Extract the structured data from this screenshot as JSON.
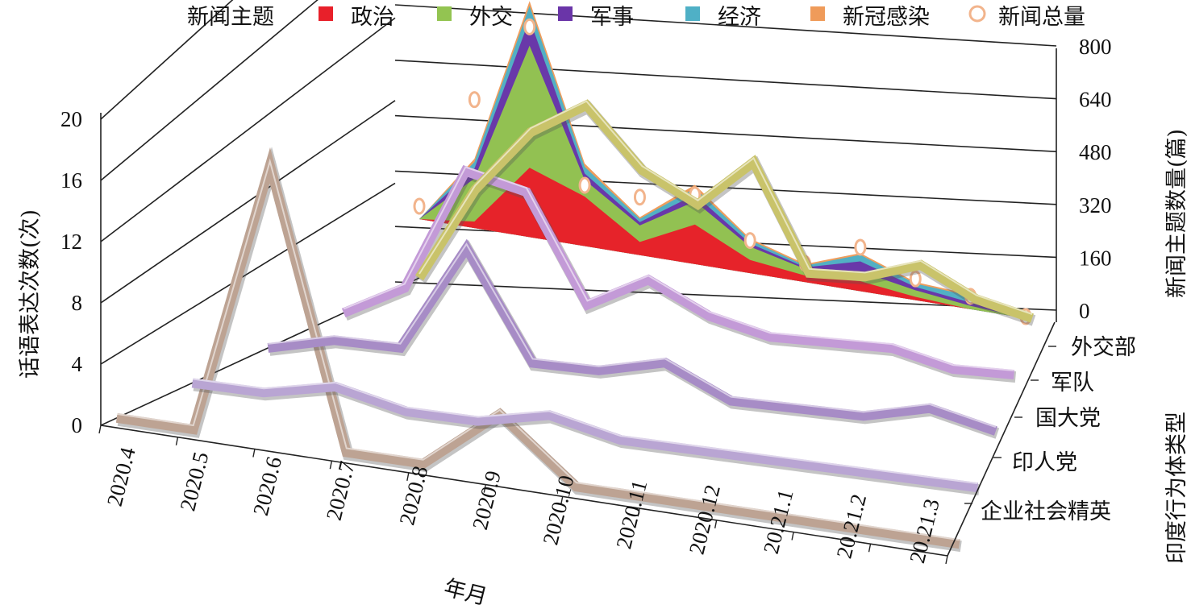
{
  "chart_data": {
    "type": "line",
    "xlabel": "年月",
    "ylabel": "话语表达次数(次)",
    "zlabel": "印度行为体类型",
    "y2label": "新闻主题数量(篇)",
    "x": [
      "2020.4",
      "2020.5",
      "2020.6",
      "2020.7",
      "2020.8",
      "2020.9",
      "2020.10",
      "2020.11",
      "2020.12",
      "20.21.1",
      "20.21.2",
      "20.21.3"
    ],
    "y_ticks": [
      "0",
      "4",
      "8",
      "12",
      "16",
      "20"
    ],
    "ylim": [
      0,
      20
    ],
    "y2_ticks": [
      "0",
      "160",
      "320",
      "480",
      "640",
      "800"
    ],
    "y2lim": [
      0,
      800
    ],
    "actor_series": [
      {
        "name": "外交部",
        "color": "#c9c36a",
        "values": [
          0,
          6,
          10,
          12,
          8,
          6,
          9,
          2,
          2,
          3,
          1,
          0
        ]
      },
      {
        "name": "军队",
        "color": "#c39ad7",
        "values": [
          0,
          2,
          10,
          9,
          2,
          4,
          2,
          1,
          1,
          1,
          0,
          0
        ]
      },
      {
        "name": "国大党",
        "color": "#a78cc6",
        "values": [
          0,
          1,
          1,
          8,
          1,
          1,
          2,
          0,
          0,
          0,
          1,
          0
        ]
      },
      {
        "name": "印人党",
        "color": "#b9a5d3",
        "values": [
          0,
          0,
          1,
          0,
          0,
          1,
          0,
          0,
          0,
          0,
          0,
          0
        ]
      },
      {
        "name": "企业社会精英",
        "color": "#bda393",
        "values": [
          0,
          0,
          18,
          0,
          0,
          4,
          0,
          0,
          0,
          0,
          0,
          0
        ]
      }
    ],
    "news_legend_title": "新闻主题",
    "news_series": [
      {
        "name": "政治",
        "color": "#e8202a",
        "values": [
          0,
          20,
          210,
          150,
          40,
          120,
          40,
          20,
          30,
          10,
          0,
          0
        ]
      },
      {
        "name": "外交",
        "color": "#93c451",
        "values": [
          0,
          130,
          370,
          50,
          50,
          70,
          40,
          20,
          30,
          20,
          10,
          0
        ]
      },
      {
        "name": "军事",
        "color": "#6a35a8",
        "values": [
          0,
          30,
          80,
          20,
          10,
          20,
          10,
          5,
          30,
          10,
          10,
          0
        ]
      },
      {
        "name": "经济",
        "color": "#4fb0c6",
        "values": [
          0,
          20,
          40,
          20,
          10,
          20,
          10,
          5,
          20,
          10,
          20,
          10
        ]
      },
      {
        "name": "新冠感染",
        "color": "#ef9b5a",
        "values": [
          0,
          10,
          15,
          10,
          5,
          10,
          5,
          5,
          5,
          5,
          5,
          5
        ]
      }
    ],
    "total_series": {
      "name": "新闻总量",
      "color": "#f2b48c",
      "values": [
        60,
        470,
        760,
        230,
        220,
        260,
        130,
        80,
        170,
        90,
        60,
        20
      ]
    }
  }
}
